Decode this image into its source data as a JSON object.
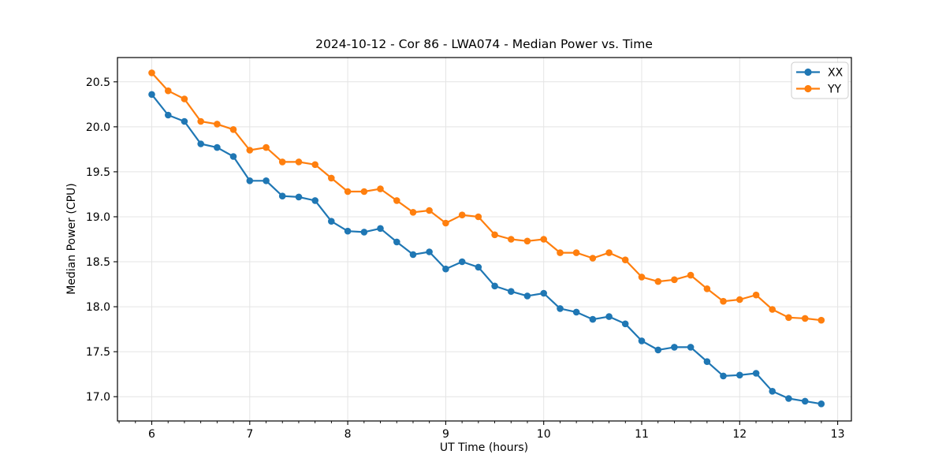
{
  "chart_data": {
    "type": "line",
    "title": "2024-10-12 - Cor 86 - LWA074 - Median Power vs. Time",
    "xlabel": "UT Time (hours)",
    "ylabel": "Median Power (CPU)",
    "xlim": [
      5.65,
      13.14
    ],
    "ylim": [
      16.73,
      20.77
    ],
    "x_ticks": [
      6,
      7,
      8,
      9,
      10,
      11,
      12,
      13
    ],
    "x_minor_tick_step": 0.166667,
    "y_ticks": [
      17.0,
      17.5,
      18.0,
      18.5,
      19.0,
      19.5,
      20.0,
      20.5
    ],
    "grid": "major",
    "grid_color": "#e4e4e4",
    "legend_position": "upper right",
    "x": [
      6.0,
      6.167,
      6.333,
      6.5,
      6.667,
      6.833,
      7.0,
      7.167,
      7.333,
      7.5,
      7.667,
      7.833,
      8.0,
      8.167,
      8.333,
      8.5,
      8.667,
      8.833,
      9.0,
      9.167,
      9.333,
      9.5,
      9.667,
      9.833,
      10.0,
      10.167,
      10.333,
      10.5,
      10.667,
      10.833,
      11.0,
      11.167,
      11.333,
      11.5,
      11.667,
      11.833,
      12.0,
      12.167,
      12.333,
      12.5,
      12.667,
      12.833
    ],
    "series": [
      {
        "name": "XX",
        "color": "#1f77b4",
        "values": [
          20.36,
          20.13,
          20.06,
          19.81,
          19.77,
          19.67,
          19.4,
          19.4,
          19.23,
          19.22,
          19.18,
          18.95,
          18.84,
          18.83,
          18.87,
          18.72,
          18.58,
          18.61,
          18.42,
          18.5,
          18.44,
          18.23,
          18.17,
          18.12,
          18.15,
          17.98,
          17.94,
          17.86,
          17.89,
          17.81,
          17.62,
          17.52,
          17.55,
          17.55,
          17.39,
          17.23,
          17.24,
          17.26,
          17.06,
          16.98,
          16.95,
          16.92
        ]
      },
      {
        "name": "YY",
        "color": "#ff7f0e",
        "values": [
          20.6,
          20.4,
          20.31,
          20.06,
          20.03,
          19.97,
          19.74,
          19.77,
          19.61,
          19.61,
          19.58,
          19.43,
          19.28,
          19.28,
          19.31,
          19.18,
          19.05,
          19.07,
          18.93,
          19.02,
          19.0,
          18.8,
          18.75,
          18.73,
          18.75,
          18.6,
          18.6,
          18.54,
          18.6,
          18.52,
          18.33,
          18.28,
          18.3,
          18.35,
          18.2,
          18.06,
          18.08,
          18.13,
          17.97,
          17.88,
          17.87,
          17.85
        ]
      }
    ]
  }
}
